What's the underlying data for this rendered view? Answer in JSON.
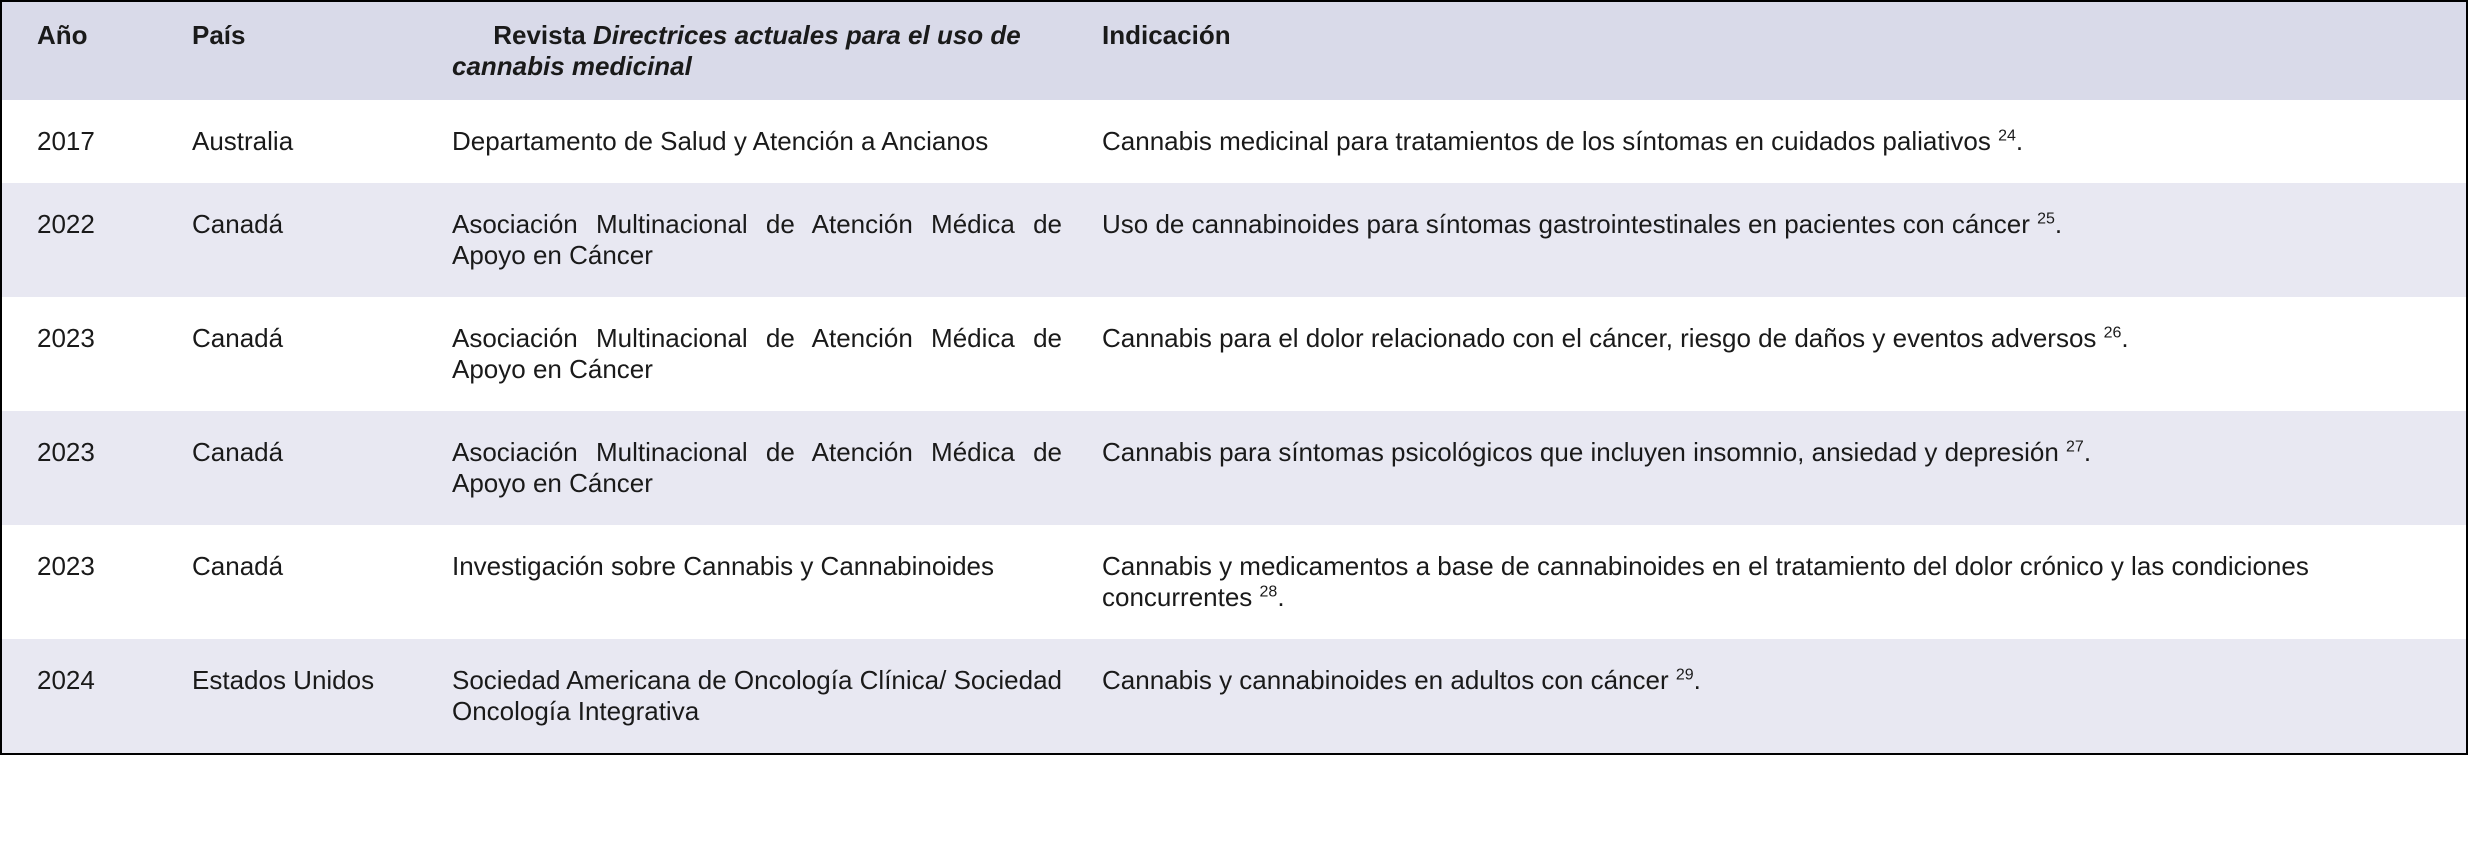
{
  "table": {
    "header": {
      "year": "Año",
      "country": "País",
      "journal_prefix": "Revista ",
      "journal_italic": "Directrices actuales para el uso de cannabis medicinal",
      "indication": "Indicación"
    },
    "colors": {
      "header_bg": "#d9dae9",
      "row_odd_bg": "#ffffff",
      "row_even_bg": "#e8e8f2",
      "border": "#000000",
      "text": "#1a1a1a"
    },
    "columns": {
      "year_width": 170,
      "country_width": 260,
      "journal_width": 650
    },
    "typography": {
      "font_family": "Trebuchet MS",
      "header_fontsize": 26,
      "cell_fontsize": 26,
      "sup_fontsize": 16
    },
    "rows": [
      {
        "year": "2017",
        "country": "Australia",
        "journal": "Departamento de Salud y Atención a Ancianos",
        "indication": "Cannabis medicinal para tratamientos de los síntomas en cuidados paliativos ",
        "ref": "24",
        "suffix": "."
      },
      {
        "year": "2022",
        "country": "Canadá",
        "journal": "Asociación Multinacional de Atención Médica de Apoyo en Cáncer",
        "indication": "Uso de cannabinoides para síntomas gastrointestinales en pacientes con cáncer ",
        "ref": "25",
        "suffix": "."
      },
      {
        "year": "2023",
        "country": "Canadá",
        "journal": "Asociación Multinacional de Atención Médica de Apoyo en Cáncer",
        "indication": "Cannabis para el dolor relacionado con el cáncer, riesgo de daños y eventos adversos ",
        "ref": "26",
        "suffix": "."
      },
      {
        "year": "2023",
        "country": "Canadá",
        "journal": "Asociación Multinacional de Atención Médica de Apoyo en Cáncer",
        "indication": "Cannabis para síntomas psicológicos que incluyen insomnio, ansiedad y depresión ",
        "ref": "27",
        "suffix": "."
      },
      {
        "year": "2023",
        "country": "Canadá",
        "journal": "Investigación sobre Cannabis y Cannabinoides",
        "indication": "Cannabis y medicamentos a base de cannabinoides en el tratamiento del dolor crónico y las condiciones concurrentes ",
        "ref": "28",
        "suffix": "."
      },
      {
        "year": "2024",
        "country": "Estados Unidos",
        "journal": "Sociedad Americana de Oncología Clínica/ Sociedad Oncología Integrativa",
        "indication": "Cannabis y cannabinoides en adultos con cáncer ",
        "ref": "29",
        "suffix": "."
      }
    ]
  }
}
